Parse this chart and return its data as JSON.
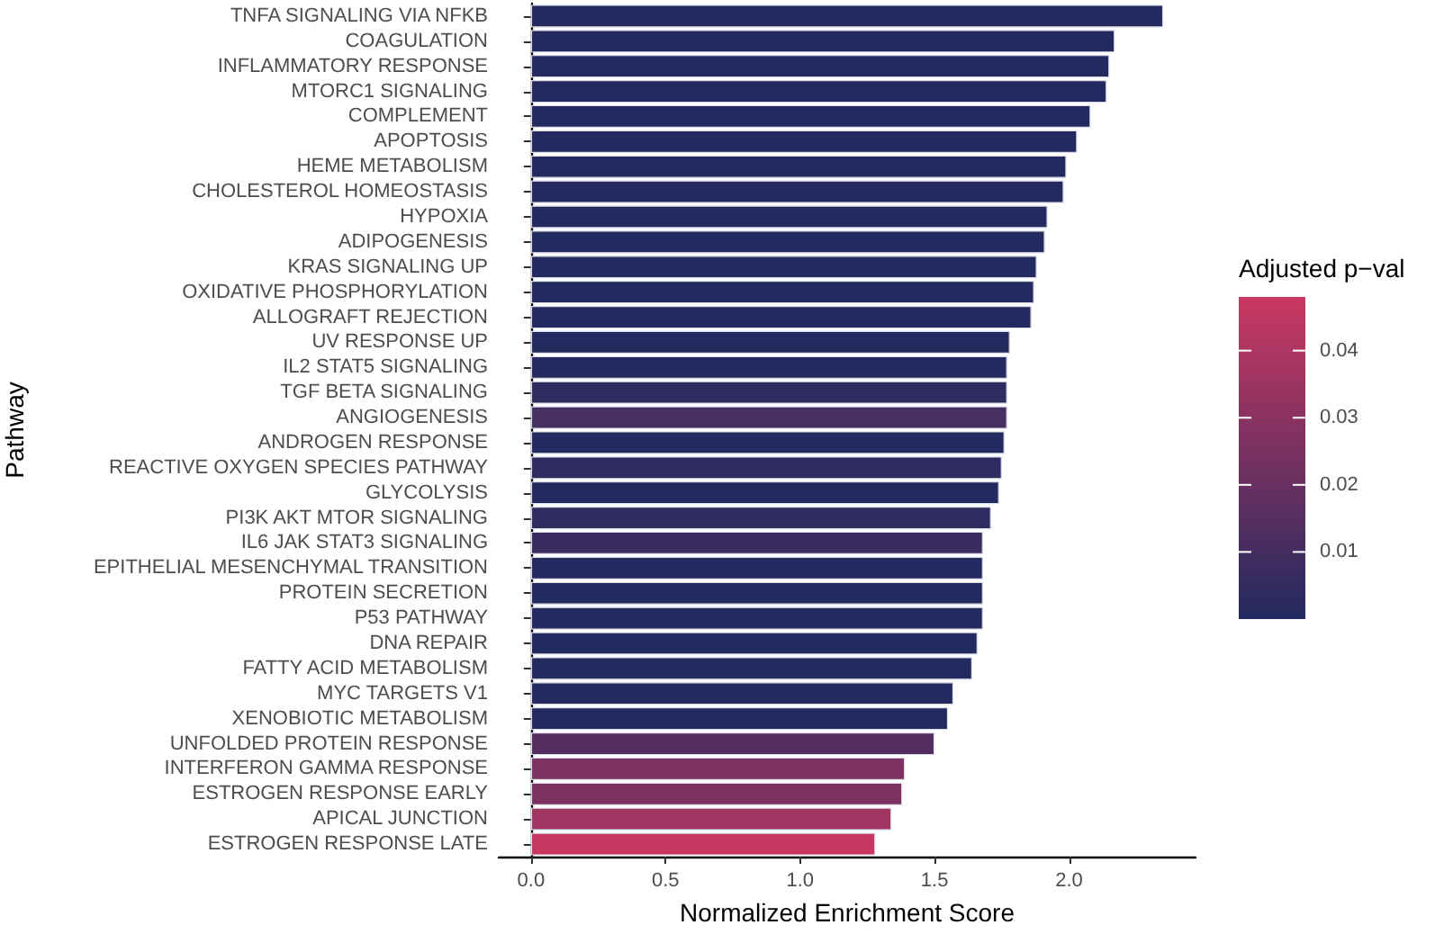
{
  "chart_data": {
    "type": "bar",
    "orientation": "horizontal",
    "xlabel": "Normalized Enrichment Score",
    "ylabel": "Pathway",
    "clabel": "Adjusted p−val",
    "categories": [
      "TNFA SIGNALING VIA NFKB",
      "COAGULATION",
      "INFLAMMATORY RESPONSE",
      "MTORC1 SIGNALING",
      "COMPLEMENT",
      "APOPTOSIS",
      "HEME METABOLISM",
      "CHOLESTEROL HOMEOSTASIS",
      "HYPOXIA",
      "ADIPOGENESIS",
      "KRAS SIGNALING UP",
      "OXIDATIVE PHOSPHORYLATION",
      "ALLOGRAFT REJECTION",
      "UV RESPONSE UP",
      "IL2 STAT5 SIGNALING",
      "TGF BETA SIGNALING",
      "ANGIOGENESIS",
      "ANDROGEN RESPONSE",
      "REACTIVE OXYGEN SPECIES PATHWAY",
      "GLYCOLYSIS",
      "PI3K AKT MTOR SIGNALING",
      "IL6 JAK STAT3 SIGNALING",
      "EPITHELIAL MESENCHYMAL TRANSITION",
      "PROTEIN SECRETION",
      "P53 PATHWAY",
      "DNA REPAIR",
      "FATTY ACID METABOLISM",
      "MYC TARGETS V1",
      "XENOBIOTIC METABOLISM",
      "UNFOLDED PROTEIN RESPONSE",
      "INTERFERON GAMMA RESPONSE",
      "ESTROGEN RESPONSE EARLY",
      "APICAL JUNCTION",
      "ESTROGEN RESPONSE LATE"
    ],
    "values": [
      2.35,
      2.17,
      2.15,
      2.14,
      2.08,
      2.03,
      1.99,
      1.98,
      1.92,
      1.91,
      1.88,
      1.87,
      1.86,
      1.78,
      1.77,
      1.77,
      1.77,
      1.76,
      1.75,
      1.74,
      1.71,
      1.68,
      1.68,
      1.68,
      1.68,
      1.66,
      1.64,
      1.57,
      1.55,
      1.5,
      1.39,
      1.38,
      1.34,
      1.28
    ],
    "colors": [
      "#222a5f",
      "#222a5f",
      "#222a5f",
      "#222a5f",
      "#222a5f",
      "#222a5f",
      "#222a5f",
      "#222a5f",
      "#222a5f",
      "#222a5f",
      "#222a5f",
      "#222a5f",
      "#222a5f",
      "#222a5f",
      "#222a5f",
      "#2d2b5f",
      "#492e60",
      "#222a5f",
      "#2d2b5f",
      "#222a5f",
      "#2d2b5f",
      "#3b2c60",
      "#222a5f",
      "#222a5f",
      "#222a5f",
      "#222a5f",
      "#222a5f",
      "#222a5f",
      "#222a5f",
      "#542e60",
      "#7f3261",
      "#7b3261",
      "#9f3561",
      "#c93862"
    ],
    "xlim": [
      -0.12,
      2.47
    ],
    "xticks": [
      {
        "value": 0,
        "label": "0.0"
      },
      {
        "value": 0.5,
        "label": "0.5"
      },
      {
        "value": 1,
        "label": "1.0"
      },
      {
        "value": 1.5,
        "label": "1.5"
      },
      {
        "value": 2,
        "label": "2.0"
      }
    ],
    "clim": [
      0,
      0.048
    ],
    "cticks": [
      0.01,
      0.02,
      0.03,
      0.04
    ]
  }
}
